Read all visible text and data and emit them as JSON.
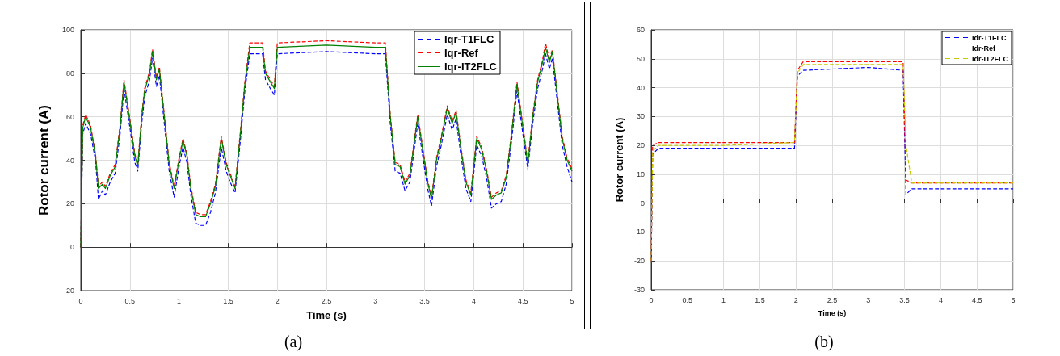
{
  "chart_data": [
    {
      "type": "line",
      "xlabel": "Time (s)",
      "ylabel": "Rotor current (A)",
      "annotations": [
        "(a)"
      ],
      "xlim": [
        0,
        5
      ],
      "xticks": [
        0,
        0.5,
        1,
        1.5,
        2,
        2.5,
        3,
        3.5,
        4,
        4.5,
        5
      ],
      "ylim": [
        -20,
        100
      ],
      "yticks": [
        -20,
        0,
        20,
        40,
        60,
        80,
        100
      ],
      "grid": true,
      "legend": "top right",
      "marker": "none",
      "x": [
        0,
        0.02,
        0.05,
        0.1,
        0.15,
        0.18,
        0.22,
        0.25,
        0.3,
        0.35,
        0.4,
        0.44,
        0.5,
        0.55,
        0.58,
        0.62,
        0.65,
        0.7,
        0.73,
        0.77,
        0.8,
        0.85,
        0.9,
        0.95,
        1.0,
        1.04,
        1.08,
        1.12,
        1.17,
        1.22,
        1.27,
        1.32,
        1.37,
        1.43,
        1.48,
        1.52,
        1.57,
        1.62,
        1.67,
        1.72,
        1.8,
        1.85,
        1.88,
        1.93,
        1.97,
        2.0,
        2.5,
        3.0,
        3.1,
        3.15,
        3.2,
        3.25,
        3.3,
        3.35,
        3.4,
        3.43,
        3.48,
        3.53,
        3.57,
        3.62,
        3.67,
        3.73,
        3.78,
        3.82,
        3.87,
        3.92,
        3.97,
        4.03,
        4.08,
        4.13,
        4.18,
        4.23,
        4.28,
        4.33,
        4.38,
        4.44,
        4.5,
        4.55,
        4.6,
        4.65,
        4.7,
        4.73,
        4.77,
        4.8,
        4.85,
        4.9,
        4.95,
        5.0
      ],
      "series": [
        {
          "name": "Iqr-T1FLC",
          "color": "#0000ff",
          "line_style": "dashed",
          "values": [
            0,
            52,
            57,
            52,
            40,
            22,
            26,
            24,
            30,
            34,
            52,
            73,
            55,
            39,
            35,
            57,
            69,
            77,
            87,
            74,
            79,
            57,
            35,
            23,
            37,
            46,
            39,
            24,
            11,
            10,
            10,
            16,
            25,
            46,
            35,
            30,
            25,
            47,
            72,
            89,
            89,
            89,
            77,
            73,
            70,
            89,
            90,
            89,
            89,
            57,
            35,
            34,
            26,
            30,
            47,
            57,
            42,
            27,
            19,
            37,
            47,
            61,
            54,
            59,
            42,
            27,
            21,
            47,
            42,
            32,
            18,
            20,
            21,
            29,
            47,
            72,
            52,
            36,
            57,
            73,
            82,
            89,
            82,
            87,
            67,
            47,
            37,
            30
          ]
        },
        {
          "name": "Iqr-Ref",
          "color": "#ff0000",
          "line_style": "dashed",
          "values": [
            0,
            56,
            61,
            56,
            43,
            28,
            30,
            28,
            34,
            38,
            56,
            77,
            59,
            43,
            38,
            61,
            73,
            81,
            91,
            78,
            83,
            61,
            39,
            28,
            41,
            50,
            43,
            28,
            16,
            15,
            15,
            21,
            29,
            51,
            39,
            34,
            28,
            51,
            76,
            94,
            94,
            94,
            81,
            77,
            74,
            94,
            95,
            94,
            94,
            61,
            39,
            38,
            30,
            34,
            51,
            61,
            46,
            31,
            23,
            41,
            51,
            65,
            58,
            63,
            46,
            31,
            25,
            51,
            46,
            36,
            23,
            25,
            26,
            33,
            51,
            76,
            56,
            39,
            61,
            77,
            86,
            94,
            86,
            91,
            71,
            51,
            41,
            36
          ]
        },
        {
          "name": "Iqr-IT2FLC",
          "color": "#008000",
          "line_style": "solid",
          "values": [
            0,
            55,
            60,
            55,
            42,
            27,
            29,
            27,
            33,
            37,
            55,
            76,
            58,
            42,
            37,
            60,
            72,
            80,
            90,
            77,
            82,
            60,
            38,
            27,
            40,
            49,
            42,
            27,
            15,
            14,
            14,
            20,
            28,
            50,
            38,
            33,
            27,
            50,
            75,
            92,
            92,
            92,
            80,
            76,
            73,
            92,
            93,
            92,
            92,
            60,
            38,
            37,
            29,
            33,
            50,
            60,
            45,
            30,
            22,
            40,
            50,
            64,
            57,
            62,
            45,
            30,
            24,
            50,
            45,
            35,
            22,
            24,
            25,
            32,
            50,
            75,
            55,
            38,
            60,
            76,
            85,
            92,
            85,
            90,
            70,
            50,
            40,
            35
          ]
        }
      ]
    },
    {
      "type": "line",
      "xlabel": "Time (s)",
      "ylabel": "Rotor current (A)",
      "annotations": [
        "(b)"
      ],
      "xlim": [
        0,
        5
      ],
      "xticks": [
        0,
        0.5,
        1,
        1.5,
        2,
        2.5,
        3,
        3.5,
        4,
        4.5,
        5
      ],
      "ylim": [
        -30,
        60
      ],
      "yticks": [
        -30,
        -20,
        -10,
        0,
        10,
        20,
        30,
        40,
        50,
        60
      ],
      "grid": true,
      "legend": "top right",
      "marker": "none",
      "x": [
        0,
        0.02,
        0.1,
        1,
        1.98,
        2.02,
        2.1,
        3,
        3.48,
        3.52,
        3.6,
        4.5,
        5
      ],
      "series": [
        {
          "name": "Idr-T1FLC",
          "color": "#0000ff",
          "line_style": "dashed",
          "values": [
            -20,
            17,
            19,
            19,
            19,
            44,
            46,
            47,
            46,
            3,
            5,
            5,
            5
          ]
        },
        {
          "name": "Idr-Ref",
          "color": "#ff0000",
          "line_style": "dashed",
          "values": [
            -20,
            20,
            21,
            21,
            21,
            46,
            49,
            49,
            49,
            8,
            7,
            7,
            7
          ]
        },
        {
          "name": "Idr-IT2FLC",
          "color": "#c8c800",
          "line_style": "dashed",
          "values": [
            -20,
            18,
            20,
            20,
            21,
            45,
            48,
            48,
            48,
            20,
            7,
            7,
            7
          ]
        }
      ]
    }
  ]
}
